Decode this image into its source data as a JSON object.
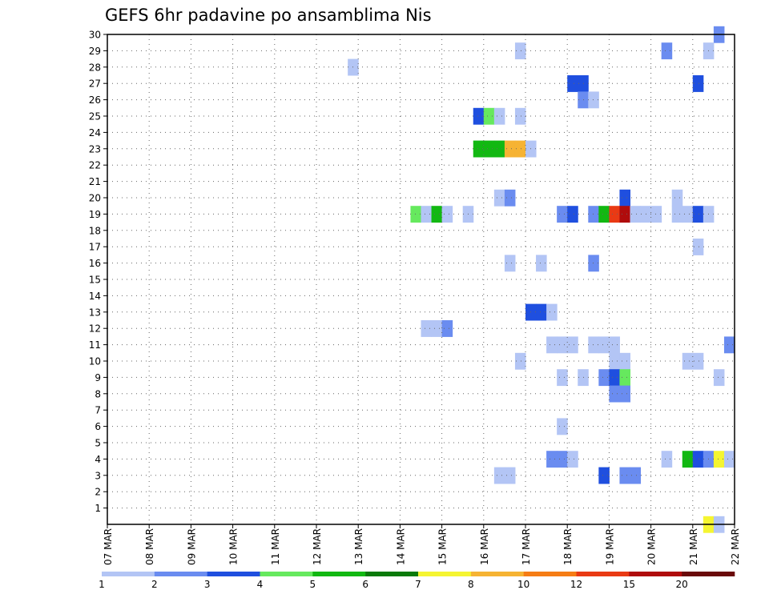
{
  "chart_data": {
    "type": "heatmap",
    "title": "GEFS 6hr padavine po ansamblima Nis",
    "x_tick_labels": [
      "07 MAR",
      "08 MAR",
      "09 MAR",
      "10 MAR",
      "11 MAR",
      "12 MAR",
      "13 MAR",
      "14 MAR",
      "15 MAR",
      "16 MAR",
      "17 MAR",
      "18 MAR",
      "19 MAR",
      "20 MAR",
      "21 MAR",
      "22 MAR"
    ],
    "xlim_days": [
      0,
      15
    ],
    "time_step_hours": 6,
    "y_tick_labels": [
      "1",
      "2",
      "3",
      "4",
      "5",
      "6",
      "7",
      "8",
      "9",
      "10",
      "11",
      "12",
      "13",
      "14",
      "15",
      "16",
      "17",
      "18",
      "19",
      "20",
      "21",
      "22",
      "23",
      "24",
      "25",
      "26",
      "27",
      "28",
      "29",
      "30"
    ],
    "ylim": [
      0,
      30
    ],
    "grid": true,
    "colorbar": {
      "placement": "bottom",
      "tick_labels": [
        "1",
        "2",
        "3",
        "4",
        "5",
        "6",
        "7",
        "8",
        "10",
        "12",
        "15",
        "20"
      ],
      "colors": [
        "#b3c5f5",
        "#6a8cf0",
        "#1f4fdf",
        "#66e95e",
        "#12b812",
        "#0a7a0a",
        "#f5f531",
        "#f6b333",
        "#f67d15",
        "#e93a14",
        "#b00c0c",
        "#6a0a0a"
      ]
    },
    "cells": [
      {
        "member": 30,
        "day": 14.75,
        "c": 2
      },
      {
        "member": 29,
        "day": 10.0,
        "c": 1
      },
      {
        "member": 29,
        "day": 13.5,
        "c": 2
      },
      {
        "member": 29,
        "day": 14.5,
        "c": 1
      },
      {
        "member": 28,
        "day": 6.0,
        "c": 1
      },
      {
        "member": 27,
        "day": 11.25,
        "c": 3
      },
      {
        "member": 27,
        "day": 11.5,
        "c": 3
      },
      {
        "member": 27,
        "day": 14.25,
        "c": 3
      },
      {
        "member": 26,
        "day": 11.5,
        "c": 2
      },
      {
        "member": 26,
        "day": 11.75,
        "c": 1
      },
      {
        "member": 25,
        "day": 9.0,
        "c": 3
      },
      {
        "member": 25,
        "day": 9.25,
        "c": 4
      },
      {
        "member": 25,
        "day": 9.5,
        "c": 1
      },
      {
        "member": 25,
        "day": 10.0,
        "c": 1
      },
      {
        "member": 23,
        "day": 9.0,
        "c": 5
      },
      {
        "member": 23,
        "day": 9.25,
        "c": 5
      },
      {
        "member": 23,
        "day": 9.5,
        "c": 5
      },
      {
        "member": 23,
        "day": 9.75,
        "c": 8
      },
      {
        "member": 23,
        "day": 10.0,
        "c": 8
      },
      {
        "member": 23,
        "day": 10.25,
        "c": 1
      },
      {
        "member": 20,
        "day": 9.5,
        "c": 1
      },
      {
        "member": 20,
        "day": 9.75,
        "c": 2
      },
      {
        "member": 20,
        "day": 12.5,
        "c": 3
      },
      {
        "member": 20,
        "day": 13.75,
        "c": 1
      },
      {
        "member": 19,
        "day": 7.5,
        "c": 4
      },
      {
        "member": 19,
        "day": 7.75,
        "c": 1
      },
      {
        "member": 19,
        "day": 8.0,
        "c": 5
      },
      {
        "member": 19,
        "day": 8.25,
        "c": 1
      },
      {
        "member": 19,
        "day": 8.75,
        "c": 1
      },
      {
        "member": 19,
        "day": 11.0,
        "c": 2
      },
      {
        "member": 19,
        "day": 11.25,
        "c": 3
      },
      {
        "member": 19,
        "day": 11.75,
        "c": 2
      },
      {
        "member": 19,
        "day": 12.0,
        "c": 5
      },
      {
        "member": 19,
        "day": 12.25,
        "c": 10
      },
      {
        "member": 19,
        "day": 12.5,
        "c": 11
      },
      {
        "member": 19,
        "day": 12.75,
        "c": 1
      },
      {
        "member": 19,
        "day": 13.0,
        "c": 1
      },
      {
        "member": 19,
        "day": 13.25,
        "c": 1
      },
      {
        "member": 19,
        "day": 13.75,
        "c": 1
      },
      {
        "member": 19,
        "day": 14.0,
        "c": 1
      },
      {
        "member": 19,
        "day": 14.25,
        "c": 3
      },
      {
        "member": 19,
        "day": 14.5,
        "c": 1
      },
      {
        "member": 17,
        "day": 14.25,
        "c": 1
      },
      {
        "member": 16,
        "day": 9.75,
        "c": 1
      },
      {
        "member": 16,
        "day": 10.5,
        "c": 1
      },
      {
        "member": 16,
        "day": 11.75,
        "c": 2
      },
      {
        "member": 13,
        "day": 10.25,
        "c": 3
      },
      {
        "member": 13,
        "day": 10.5,
        "c": 3
      },
      {
        "member": 13,
        "day": 10.75,
        "c": 1
      },
      {
        "member": 12,
        "day": 7.75,
        "c": 1
      },
      {
        "member": 12,
        "day": 8.0,
        "c": 1
      },
      {
        "member": 12,
        "day": 8.25,
        "c": 2
      },
      {
        "member": 11,
        "day": 10.75,
        "c": 1
      },
      {
        "member": 11,
        "day": 11.0,
        "c": 1
      },
      {
        "member": 11,
        "day": 11.25,
        "c": 1
      },
      {
        "member": 11,
        "day": 11.75,
        "c": 1
      },
      {
        "member": 11,
        "day": 12.0,
        "c": 1
      },
      {
        "member": 11,
        "day": 12.25,
        "c": 1
      },
      {
        "member": 11,
        "day": 15.0,
        "c": 2
      },
      {
        "member": 10,
        "day": 10.0,
        "c": 1
      },
      {
        "member": 10,
        "day": 12.25,
        "c": 1
      },
      {
        "member": 10,
        "day": 12.5,
        "c": 1
      },
      {
        "member": 10,
        "day": 14.0,
        "c": 1
      },
      {
        "member": 10,
        "day": 14.25,
        "c": 1
      },
      {
        "member": 9,
        "day": 11.0,
        "c": 1
      },
      {
        "member": 9,
        "day": 11.5,
        "c": 1
      },
      {
        "member": 9,
        "day": 12.0,
        "c": 2
      },
      {
        "member": 9,
        "day": 12.25,
        "c": 3
      },
      {
        "member": 9,
        "day": 12.5,
        "c": 4
      },
      {
        "member": 9,
        "day": 14.75,
        "c": 1
      },
      {
        "member": 8,
        "day": 12.25,
        "c": 2
      },
      {
        "member": 8,
        "day": 12.5,
        "c": 2
      },
      {
        "member": 6,
        "day": 11.0,
        "c": 1
      },
      {
        "member": 4,
        "day": 10.75,
        "c": 2
      },
      {
        "member": 4,
        "day": 11.0,
        "c": 2
      },
      {
        "member": 4,
        "day": 11.25,
        "c": 1
      },
      {
        "member": 4,
        "day": 13.5,
        "c": 1
      },
      {
        "member": 4,
        "day": 14.0,
        "c": 5
      },
      {
        "member": 4,
        "day": 14.25,
        "c": 3
      },
      {
        "member": 4,
        "day": 14.5,
        "c": 2
      },
      {
        "member": 4,
        "day": 14.75,
        "c": 7
      },
      {
        "member": 4,
        "day": 15.0,
        "c": 1
      },
      {
        "member": 3,
        "day": 9.5,
        "c": 1
      },
      {
        "member": 3,
        "day": 9.75,
        "c": 1
      },
      {
        "member": 3,
        "day": 12.0,
        "c": 3
      },
      {
        "member": 3,
        "day": 12.5,
        "c": 2
      },
      {
        "member": 3,
        "day": 12.75,
        "c": 2
      },
      {
        "member": 0,
        "day": 14.5,
        "c": 7
      },
      {
        "member": 0,
        "day": 14.75,
        "c": 1
      }
    ]
  }
}
